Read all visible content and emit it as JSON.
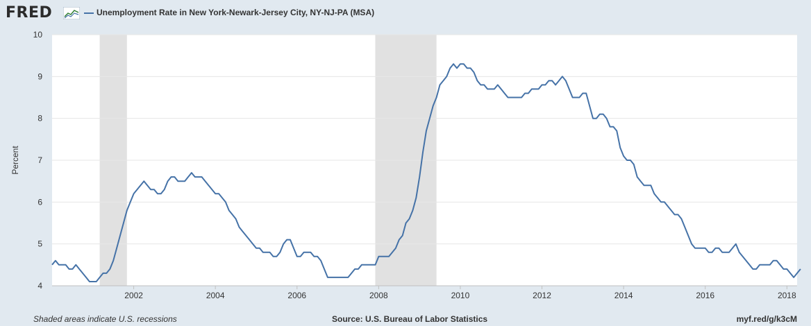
{
  "header": {
    "logo_text": "FRED",
    "logo_icon": "fred-graph-icon",
    "series_color": "#4572a7"
  },
  "footer": {
    "note": "Shaded areas indicate U.S. recessions",
    "source": "Source: U.S. Bureau of Labor Statistics",
    "link": "myf.red/g/k3cM"
  },
  "chart_data": {
    "type": "line",
    "title": "Unemployment Rate in New York-Newark-Jersey City, NY-NJ-PA (MSA)",
    "ylabel": "Percent",
    "xlabel": "",
    "ylim": [
      4,
      10
    ],
    "yticks": [
      4,
      5,
      6,
      7,
      8,
      9,
      10
    ],
    "xlim": [
      "2000-01",
      "2018-04"
    ],
    "xticks": [
      "2002",
      "2004",
      "2006",
      "2008",
      "2010",
      "2012",
      "2014",
      "2016",
      "2018"
    ],
    "grid": true,
    "recessions": [
      [
        "2001-03",
        "2001-11"
      ],
      [
        "2007-12",
        "2009-06"
      ]
    ],
    "recession_color": "#e1e1e1",
    "series": [
      {
        "color": "#4572a7",
        "start": "2000-01",
        "frequency": "monthly",
        "values": [
          4.5,
          4.6,
          4.5,
          4.5,
          4.5,
          4.4,
          4.4,
          4.5,
          4.4,
          4.3,
          4.2,
          4.1,
          4.1,
          4.1,
          4.2,
          4.3,
          4.3,
          4.4,
          4.6,
          4.9,
          5.2,
          5.5,
          5.8,
          6.0,
          6.2,
          6.3,
          6.4,
          6.5,
          6.4,
          6.3,
          6.3,
          6.2,
          6.2,
          6.3,
          6.5,
          6.6,
          6.6,
          6.5,
          6.5,
          6.5,
          6.6,
          6.7,
          6.6,
          6.6,
          6.6,
          6.5,
          6.4,
          6.3,
          6.2,
          6.2,
          6.1,
          6.0,
          5.8,
          5.7,
          5.6,
          5.4,
          5.3,
          5.2,
          5.1,
          5.0,
          4.9,
          4.9,
          4.8,
          4.8,
          4.8,
          4.7,
          4.7,
          4.8,
          5.0,
          5.1,
          5.1,
          4.9,
          4.7,
          4.7,
          4.8,
          4.8,
          4.8,
          4.7,
          4.7,
          4.6,
          4.4,
          4.2,
          4.2,
          4.2,
          4.2,
          4.2,
          4.2,
          4.2,
          4.3,
          4.4,
          4.4,
          4.5,
          4.5,
          4.5,
          4.5,
          4.5,
          4.7,
          4.7,
          4.7,
          4.7,
          4.8,
          4.9,
          5.1,
          5.2,
          5.5,
          5.6,
          5.8,
          6.1,
          6.6,
          7.2,
          7.7,
          8.0,
          8.3,
          8.5,
          8.8,
          8.9,
          9.0,
          9.2,
          9.3,
          9.2,
          9.3,
          9.3,
          9.2,
          9.2,
          9.1,
          8.9,
          8.8,
          8.8,
          8.7,
          8.7,
          8.7,
          8.8,
          8.7,
          8.6,
          8.5,
          8.5,
          8.5,
          8.5,
          8.5,
          8.6,
          8.6,
          8.7,
          8.7,
          8.7,
          8.8,
          8.8,
          8.9,
          8.9,
          8.8,
          8.9,
          9.0,
          8.9,
          8.7,
          8.5,
          8.5,
          8.5,
          8.6,
          8.6,
          8.3,
          8.0,
          8.0,
          8.1,
          8.1,
          8.0,
          7.8,
          7.8,
          7.7,
          7.3,
          7.1,
          7.0,
          7.0,
          6.9,
          6.6,
          6.5,
          6.4,
          6.4,
          6.4,
          6.2,
          6.1,
          6.0,
          6.0,
          5.9,
          5.8,
          5.7,
          5.7,
          5.6,
          5.4,
          5.2,
          5.0,
          4.9,
          4.9,
          4.9,
          4.9,
          4.8,
          4.8,
          4.9,
          4.9,
          4.8,
          4.8,
          4.8,
          4.9,
          5.0,
          4.8,
          4.7,
          4.6,
          4.5,
          4.4,
          4.4,
          4.5,
          4.5,
          4.5,
          4.5,
          4.6,
          4.6,
          4.5,
          4.4,
          4.4,
          4.3,
          4.2,
          4.3,
          4.4
        ]
      }
    ]
  }
}
